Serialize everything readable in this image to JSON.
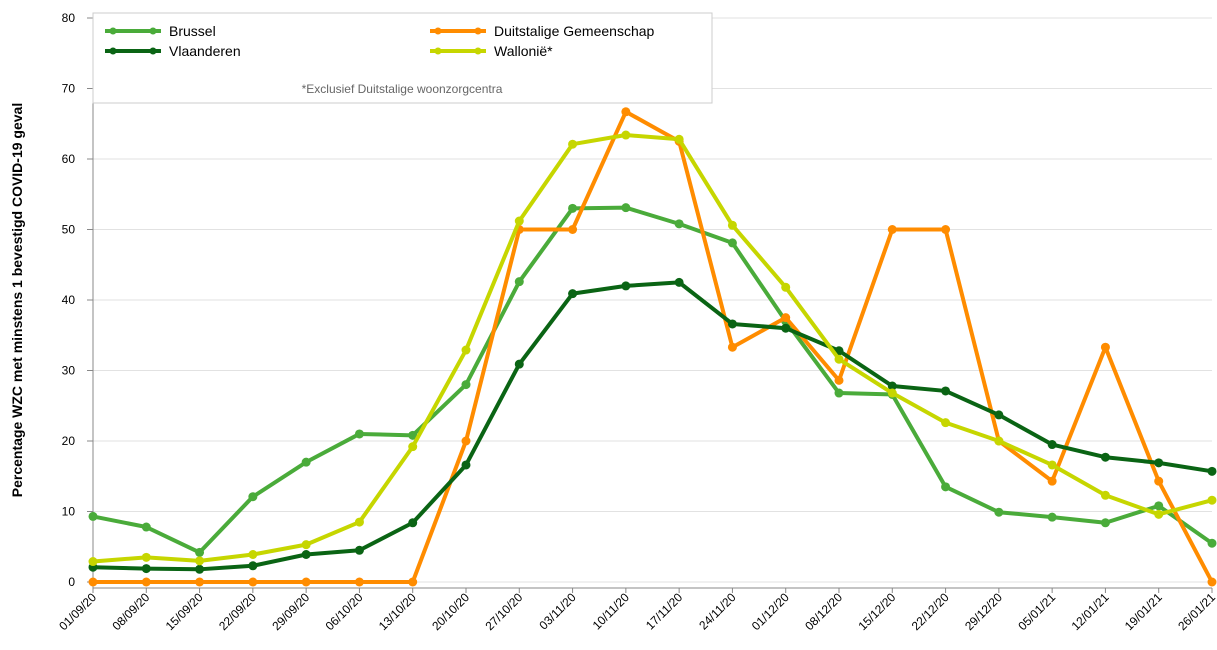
{
  "chart_data": {
    "type": "line",
    "ylabel": "Percentage WZC met minstens 1 bevestigd COVID-19 geval",
    "legend_note": "*Exclusief Duitstalige woonzorgcentra",
    "legend": "top-left",
    "grid": true,
    "categories": [
      "01/09/20",
      "08/09/20",
      "15/09/20",
      "22/09/20",
      "29/09/20",
      "06/10/20",
      "13/10/20",
      "20/10/20",
      "27/10/20",
      "03/11/20",
      "10/11/20",
      "17/11/20",
      "24/11/20",
      "01/12/20",
      "08/12/20",
      "15/12/20",
      "22/12/20",
      "29/12/20",
      "05/01/21",
      "12/01/21",
      "19/01/21",
      "26/01/21"
    ],
    "ylim": [
      0,
      80
    ],
    "yticks": [
      0,
      10,
      20,
      30,
      40,
      50,
      60,
      70,
      80
    ],
    "series": [
      {
        "name": "Brussel",
        "color": "#4aab3a",
        "values": [
          9.3,
          7.8,
          4.2,
          12.1,
          17.0,
          21.0,
          20.8,
          28.0,
          42.6,
          53.0,
          53.1,
          50.8,
          48.1,
          37.0,
          26.8,
          26.6,
          13.5,
          9.9,
          9.2,
          8.4,
          10.8,
          5.5
        ]
      },
      {
        "name": "Duitstalige Gemeenschap",
        "color": "#ff8c00",
        "values": [
          0,
          0,
          0,
          0,
          0,
          0,
          0,
          20.0,
          50.0,
          50.0,
          66.7,
          62.5,
          33.3,
          37.5,
          28.6,
          50.0,
          50.0,
          20.0,
          14.3,
          33.3,
          14.3,
          0
        ]
      },
      {
        "name": "Vlaanderen",
        "color": "#0a6414",
        "values": [
          2.1,
          1.9,
          1.8,
          2.3,
          3.9,
          4.5,
          8.4,
          16.6,
          30.9,
          40.9,
          42.0,
          42.5,
          36.6,
          36.0,
          32.8,
          27.8,
          27.1,
          23.7,
          19.5,
          17.7,
          16.9,
          15.7
        ]
      },
      {
        "name": "Wallonië*",
        "color": "#c6d600",
        "values": [
          2.9,
          3.5,
          3.0,
          3.9,
          5.3,
          8.5,
          19.2,
          32.9,
          51.2,
          62.1,
          63.4,
          62.8,
          50.6,
          41.8,
          31.6,
          26.8,
          22.6,
          20.0,
          16.6,
          12.3,
          9.6,
          11.6
        ]
      }
    ]
  }
}
